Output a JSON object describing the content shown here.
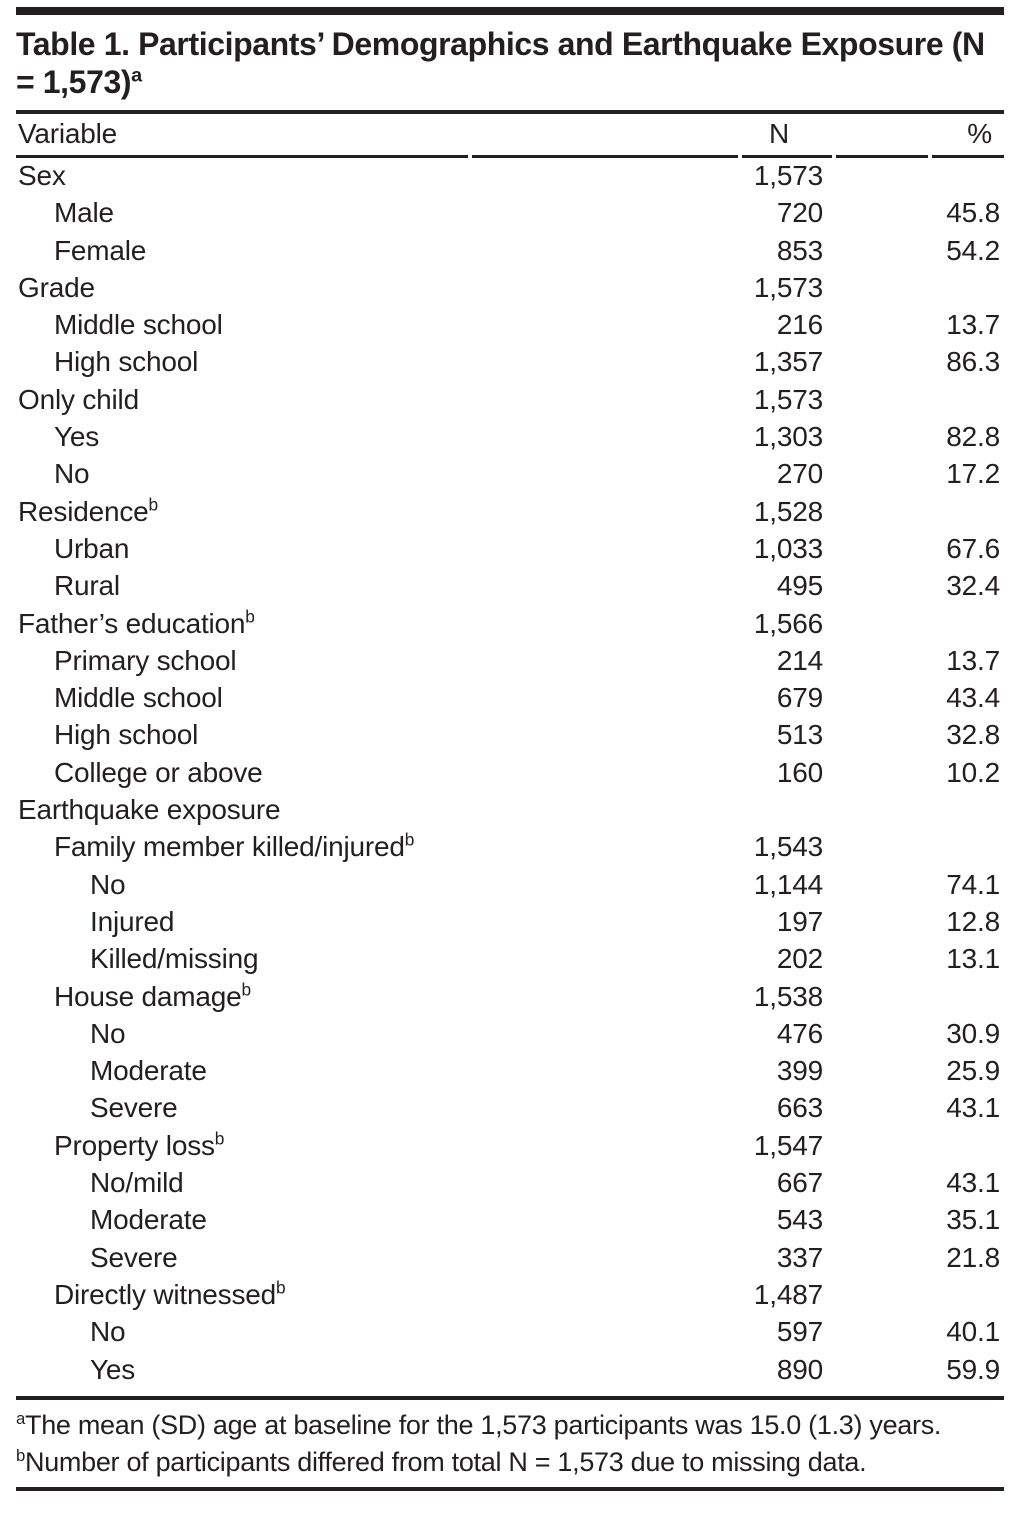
{
  "colors": {
    "text": "#231f20",
    "rules": "#231f20",
    "background": "#ffffff"
  },
  "title": {
    "text": "Table 1. Participants’ Demographics and Earthquake Exposure (N = 1,573)",
    "superscript": "a"
  },
  "columns": {
    "variable": "Variable",
    "n": "N",
    "pct": "%"
  },
  "rows": [
    {
      "label": "Sex",
      "sup": "",
      "indent": 0,
      "n": "1,573",
      "pct": ""
    },
    {
      "label": "Male",
      "sup": "",
      "indent": 1,
      "n": "720",
      "pct": "45.8"
    },
    {
      "label": "Female",
      "sup": "",
      "indent": 1,
      "n": "853",
      "pct": "54.2"
    },
    {
      "label": "Grade",
      "sup": "",
      "indent": 0,
      "n": "1,573",
      "pct": ""
    },
    {
      "label": "Middle school",
      "sup": "",
      "indent": 1,
      "n": "216",
      "pct": "13.7"
    },
    {
      "label": "High school",
      "sup": "",
      "indent": 1,
      "n": "1,357",
      "pct": "86.3"
    },
    {
      "label": "Only child",
      "sup": "",
      "indent": 0,
      "n": "1,573",
      "pct": ""
    },
    {
      "label": "Yes",
      "sup": "",
      "indent": 1,
      "n": "1,303",
      "pct": "82.8"
    },
    {
      "label": "No",
      "sup": "",
      "indent": 1,
      "n": "270",
      "pct": "17.2"
    },
    {
      "label": "Residence",
      "sup": "b",
      "indent": 0,
      "n": "1,528",
      "pct": ""
    },
    {
      "label": "Urban",
      "sup": "",
      "indent": 1,
      "n": "1,033",
      "pct": "67.6"
    },
    {
      "label": "Rural",
      "sup": "",
      "indent": 1,
      "n": "495",
      "pct": "32.4"
    },
    {
      "label": "Father’s education",
      "sup": "b",
      "indent": 0,
      "n": "1,566",
      "pct": ""
    },
    {
      "label": "Primary school",
      "sup": "",
      "indent": 1,
      "n": "214",
      "pct": "13.7"
    },
    {
      "label": "Middle school",
      "sup": "",
      "indent": 1,
      "n": "679",
      "pct": "43.4"
    },
    {
      "label": "High school",
      "sup": "",
      "indent": 1,
      "n": "513",
      "pct": "32.8"
    },
    {
      "label": "College or above",
      "sup": "",
      "indent": 1,
      "n": "160",
      "pct": "10.2"
    },
    {
      "label": "Earthquake exposure",
      "sup": "",
      "indent": 0,
      "n": "",
      "pct": ""
    },
    {
      "label": "Family member killed/injured",
      "sup": "b",
      "indent": 1,
      "n": "1,543",
      "pct": ""
    },
    {
      "label": "No",
      "sup": "",
      "indent": 2,
      "n": "1,144",
      "pct": "74.1"
    },
    {
      "label": "Injured",
      "sup": "",
      "indent": 2,
      "n": "197",
      "pct": "12.8"
    },
    {
      "label": "Killed/missing",
      "sup": "",
      "indent": 2,
      "n": "202",
      "pct": "13.1"
    },
    {
      "label": "House damage",
      "sup": "b",
      "indent": 1,
      "n": "1,538",
      "pct": ""
    },
    {
      "label": "No",
      "sup": "",
      "indent": 2,
      "n": "476",
      "pct": "30.9"
    },
    {
      "label": "Moderate",
      "sup": "",
      "indent": 2,
      "n": "399",
      "pct": "25.9"
    },
    {
      "label": "Severe",
      "sup": "",
      "indent": 2,
      "n": "663",
      "pct": "43.1"
    },
    {
      "label": "Property loss",
      "sup": "b",
      "indent": 1,
      "n": "1,547",
      "pct": ""
    },
    {
      "label": "No/mild",
      "sup": "",
      "indent": 2,
      "n": "667",
      "pct": "43.1"
    },
    {
      "label": "Moderate",
      "sup": "",
      "indent": 2,
      "n": "543",
      "pct": "35.1"
    },
    {
      "label": "Severe",
      "sup": "",
      "indent": 2,
      "n": "337",
      "pct": "21.8"
    },
    {
      "label": "Directly witnessed",
      "sup": "b",
      "indent": 1,
      "n": "1,487",
      "pct": ""
    },
    {
      "label": "No",
      "sup": "",
      "indent": 2,
      "n": "597",
      "pct": "40.1"
    },
    {
      "label": "Yes",
      "sup": "",
      "indent": 2,
      "n": "890",
      "pct": "59.9"
    }
  ],
  "footnotes": [
    {
      "sup": "a",
      "text": "The mean (SD) age at baseline for the 1,573 participants was 15.0 (1.3) years."
    },
    {
      "sup": "b",
      "text": "Number of participants differed from total N = 1,573 due to missing data."
    }
  ]
}
